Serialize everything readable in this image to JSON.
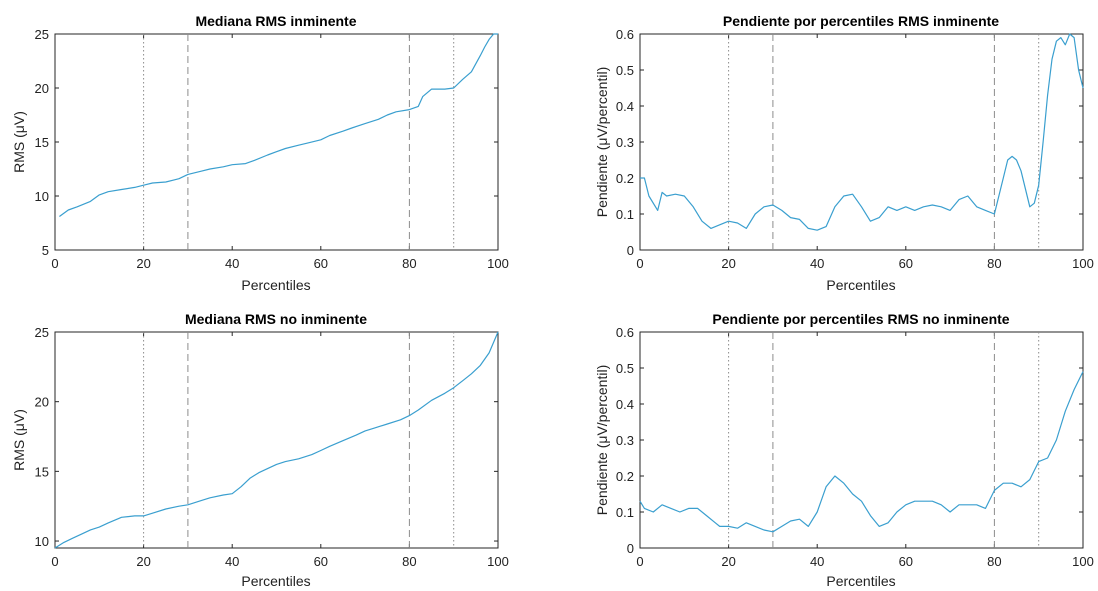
{
  "colors": {
    "line": "#3a9fcf",
    "vline": "#8c8c8c",
    "axis": "#262626"
  },
  "chart_data": [
    {
      "type": "line",
      "title": "Mediana RMS inminente",
      "xlabel": "Percentiles",
      "ylabel": "RMS (μV)",
      "xlim": [
        0,
        100
      ],
      "ylim": [
        5,
        25
      ],
      "xticks": [
        0,
        20,
        40,
        60,
        80,
        100
      ],
      "yticks": [
        5,
        10,
        15,
        20,
        25
      ],
      "xtick_labels": [
        "0",
        "20",
        "40",
        "60",
        "80",
        "100"
      ],
      "ytick_labels": [
        "5",
        "10",
        "15",
        "20",
        "25"
      ],
      "vlines": [
        {
          "x": 20,
          "style": "dotted"
        },
        {
          "x": 30,
          "style": "dashed"
        },
        {
          "x": 80,
          "style": "dashed"
        },
        {
          "x": 90,
          "style": "dotted"
        }
      ],
      "x": [
        1,
        3,
        5,
        8,
        10,
        12,
        15,
        18,
        20,
        22,
        25,
        27,
        28,
        30,
        33,
        35,
        38,
        40,
        43,
        45,
        48,
        50,
        52,
        55,
        57,
        60,
        62,
        65,
        67,
        70,
        73,
        75,
        77,
        80,
        82,
        83,
        85,
        88,
        90,
        92,
        94,
        96,
        97,
        98,
        99,
        100
      ],
      "y": [
        8.1,
        8.7,
        9.0,
        9.5,
        10.1,
        10.4,
        10.6,
        10.8,
        11.0,
        11.2,
        11.3,
        11.5,
        11.6,
        12.0,
        12.3,
        12.5,
        12.7,
        12.9,
        13.0,
        13.3,
        13.8,
        14.1,
        14.4,
        14.7,
        14.9,
        15.2,
        15.6,
        16.0,
        16.3,
        16.7,
        17.1,
        17.5,
        17.8,
        18.0,
        18.3,
        19.2,
        19.9,
        19.9,
        20.0,
        20.8,
        21.5,
        23.0,
        23.8,
        24.5,
        25.0,
        25.0
      ]
    },
    {
      "type": "line",
      "title": "Pendiente por percentiles RMS inminente",
      "xlabel": "Percentiles",
      "ylabel": "Pendiente (μV/percentil)",
      "xlim": [
        0,
        100
      ],
      "ylim": [
        0,
        0.6
      ],
      "xticks": [
        0,
        20,
        40,
        60,
        80,
        100
      ],
      "yticks": [
        0,
        0.1,
        0.2,
        0.3,
        0.4,
        0.5,
        0.6
      ],
      "xtick_labels": [
        "0",
        "20",
        "40",
        "60",
        "80",
        "100"
      ],
      "ytick_labels": [
        "0",
        "0.1",
        "0.2",
        "0.3",
        "0.4",
        "0.5",
        "0.6"
      ],
      "vlines": [
        {
          "x": 20,
          "style": "dotted"
        },
        {
          "x": 30,
          "style": "dashed"
        },
        {
          "x": 80,
          "style": "dashed"
        },
        {
          "x": 90,
          "style": "dotted"
        }
      ],
      "x": [
        0,
        1,
        2,
        4,
        5,
        6,
        8,
        10,
        12,
        14,
        16,
        18,
        20,
        22,
        24,
        26,
        28,
        30,
        32,
        34,
        36,
        38,
        40,
        42,
        44,
        46,
        48,
        50,
        52,
        54,
        56,
        58,
        60,
        62,
        64,
        66,
        68,
        70,
        72,
        74,
        76,
        78,
        80,
        82,
        83,
        84,
        85,
        86,
        88,
        89,
        90,
        91,
        92,
        93,
        94,
        95,
        96,
        97,
        98,
        99,
        100
      ],
      "y": [
        0.2,
        0.2,
        0.15,
        0.11,
        0.16,
        0.15,
        0.155,
        0.15,
        0.12,
        0.08,
        0.06,
        0.07,
        0.08,
        0.075,
        0.06,
        0.1,
        0.12,
        0.125,
        0.11,
        0.09,
        0.085,
        0.06,
        0.055,
        0.065,
        0.12,
        0.15,
        0.155,
        0.12,
        0.08,
        0.09,
        0.12,
        0.11,
        0.12,
        0.11,
        0.12,
        0.125,
        0.12,
        0.11,
        0.14,
        0.15,
        0.12,
        0.11,
        0.1,
        0.2,
        0.25,
        0.26,
        0.25,
        0.22,
        0.12,
        0.13,
        0.18,
        0.3,
        0.43,
        0.53,
        0.58,
        0.59,
        0.57,
        0.6,
        0.59,
        0.5,
        0.45
      ]
    },
    {
      "type": "line",
      "title": "Mediana RMS no inminente",
      "xlabel": "Percentiles",
      "ylabel": "RMS (μV)",
      "xlim": [
        0,
        100
      ],
      "ylim": [
        9.5,
        25
      ],
      "xticks": [
        0,
        20,
        40,
        60,
        80,
        100
      ],
      "yticks": [
        10,
        15,
        20,
        25
      ],
      "xtick_labels": [
        "0",
        "20",
        "40",
        "60",
        "80",
        "100"
      ],
      "ytick_labels": [
        "10",
        "15",
        "20",
        "25"
      ],
      "vlines": [
        {
          "x": 20,
          "style": "dotted"
        },
        {
          "x": 30,
          "style": "dashed"
        },
        {
          "x": 80,
          "style": "dashed"
        },
        {
          "x": 90,
          "style": "dotted"
        }
      ],
      "x": [
        0,
        2,
        4,
        6,
        8,
        10,
        12,
        15,
        18,
        20,
        22,
        25,
        28,
        30,
        33,
        35,
        38,
        40,
        42,
        44,
        46,
        48,
        50,
        52,
        55,
        58,
        60,
        62,
        65,
        68,
        70,
        72,
        75,
        78,
        80,
        82,
        85,
        88,
        90,
        92,
        94,
        96,
        98,
        100
      ],
      "y": [
        9.5,
        9.9,
        10.2,
        10.5,
        10.8,
        11.0,
        11.3,
        11.7,
        11.8,
        11.8,
        12.0,
        12.3,
        12.5,
        12.6,
        12.9,
        13.1,
        13.3,
        13.4,
        13.9,
        14.5,
        14.9,
        15.2,
        15.5,
        15.7,
        15.9,
        16.2,
        16.5,
        16.8,
        17.2,
        17.6,
        17.9,
        18.1,
        18.4,
        18.7,
        19.0,
        19.4,
        20.1,
        20.6,
        21.0,
        21.5,
        22.0,
        22.6,
        23.5,
        25.0
      ]
    },
    {
      "type": "line",
      "title": "Pendiente por percentiles RMS no inminente",
      "xlabel": "Percentiles",
      "ylabel": "Pendiente (μV/percentil)",
      "xlim": [
        0,
        100
      ],
      "ylim": [
        0,
        0.6
      ],
      "xticks": [
        0,
        20,
        40,
        60,
        80,
        100
      ],
      "yticks": [
        0,
        0.1,
        0.2,
        0.3,
        0.4,
        0.5,
        0.6
      ],
      "xtick_labels": [
        "0",
        "20",
        "40",
        "60",
        "80",
        "100"
      ],
      "ytick_labels": [
        "0",
        "0.1",
        "0.2",
        "0.3",
        "0.4",
        "0.5",
        "0.6"
      ],
      "vlines": [
        {
          "x": 20,
          "style": "dotted"
        },
        {
          "x": 30,
          "style": "dashed"
        },
        {
          "x": 80,
          "style": "dashed"
        },
        {
          "x": 90,
          "style": "dotted"
        }
      ],
      "x": [
        0,
        1,
        3,
        5,
        7,
        9,
        11,
        13,
        15,
        17,
        18,
        20,
        22,
        24,
        26,
        28,
        30,
        32,
        34,
        36,
        38,
        40,
        42,
        44,
        46,
        48,
        50,
        52,
        54,
        56,
        58,
        60,
        62,
        64,
        66,
        68,
        70,
        72,
        74,
        76,
        78,
        80,
        82,
        84,
        86,
        88,
        90,
        92,
        94,
        96,
        98,
        100
      ],
      "y": [
        0.13,
        0.11,
        0.1,
        0.12,
        0.11,
        0.1,
        0.11,
        0.11,
        0.09,
        0.07,
        0.06,
        0.06,
        0.055,
        0.07,
        0.06,
        0.05,
        0.045,
        0.06,
        0.075,
        0.08,
        0.06,
        0.1,
        0.17,
        0.2,
        0.18,
        0.15,
        0.13,
        0.09,
        0.06,
        0.07,
        0.1,
        0.12,
        0.13,
        0.13,
        0.13,
        0.12,
        0.1,
        0.12,
        0.12,
        0.12,
        0.11,
        0.16,
        0.18,
        0.18,
        0.17,
        0.19,
        0.24,
        0.25,
        0.3,
        0.38,
        0.44,
        0.49
      ]
    }
  ]
}
